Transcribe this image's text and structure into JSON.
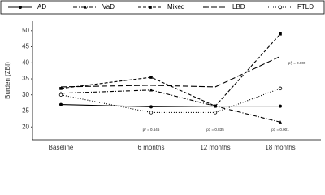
{
  "chart_data": {
    "type": "line",
    "y_label": "Burden (ZBI)",
    "categories": [
      "Baseline",
      "6 months",
      "12 months",
      "18 months"
    ],
    "series": [
      {
        "name": "AD",
        "color": "#000000",
        "dash": "solid",
        "marker": "circle",
        "values": [
          27,
          26.3,
          26.5,
          26.5
        ]
      },
      {
        "name": "VaD",
        "color": "#000000",
        "dash": "dashdot",
        "marker": "triangle",
        "values": [
          30.5,
          31.5,
          26.5,
          21.5
        ]
      },
      {
        "name": "Mixed",
        "color": "#000000",
        "dash": "dashed",
        "marker": "square",
        "values": [
          32,
          35.5,
          26.5,
          49
        ]
      },
      {
        "name": "LBD",
        "color": "#000000",
        "dash": "longdash",
        "marker": "none",
        "values": [
          32.5,
          33,
          32.5,
          42
        ]
      },
      {
        "name": "FTLD",
        "color": "#000000",
        "dash": "dotted",
        "marker": "open-circle",
        "values": [
          30,
          24.5,
          24.5,
          32
        ]
      }
    ],
    "annotations": [
      "p* = 0.645",
      "p‡ = 0.835",
      "p‡ = 0.001",
      "p§ = 0.009"
    ],
    "ylim": [
      16,
      53
    ],
    "yticks": [
      20,
      25,
      30,
      35,
      40,
      45,
      50
    ],
    "grid": false,
    "legend": "top"
  }
}
